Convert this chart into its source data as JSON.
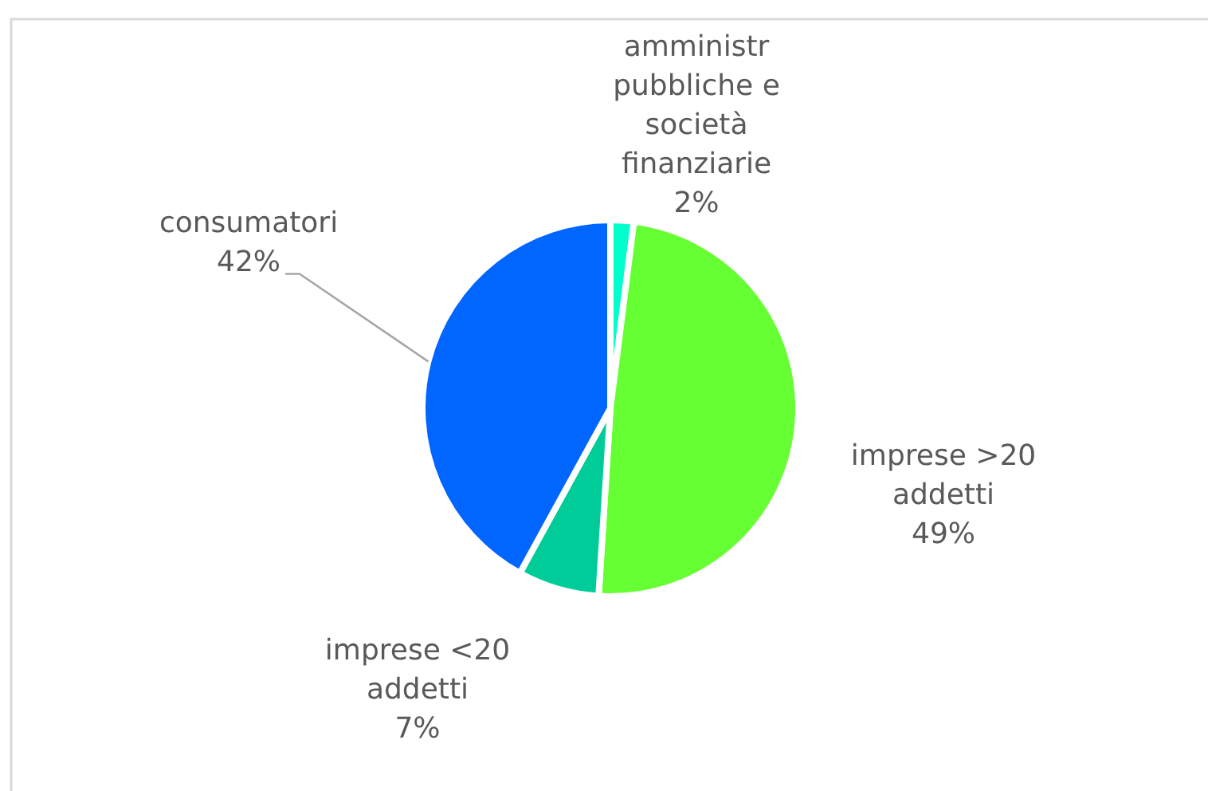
{
  "chart_data": {
    "type": "pie",
    "categories": [
      "amministr pubbliche e società finanziarie",
      "imprese >20 addetti",
      "imprese <20 addetti",
      "consumatori"
    ],
    "values": [
      2,
      49,
      7,
      42
    ],
    "colors": [
      "#00ffcc",
      "#66ff33",
      "#00cc99",
      "#0066ff"
    ],
    "value_labels": [
      "2%",
      "49%",
      "7%",
      "42%"
    ]
  }
}
